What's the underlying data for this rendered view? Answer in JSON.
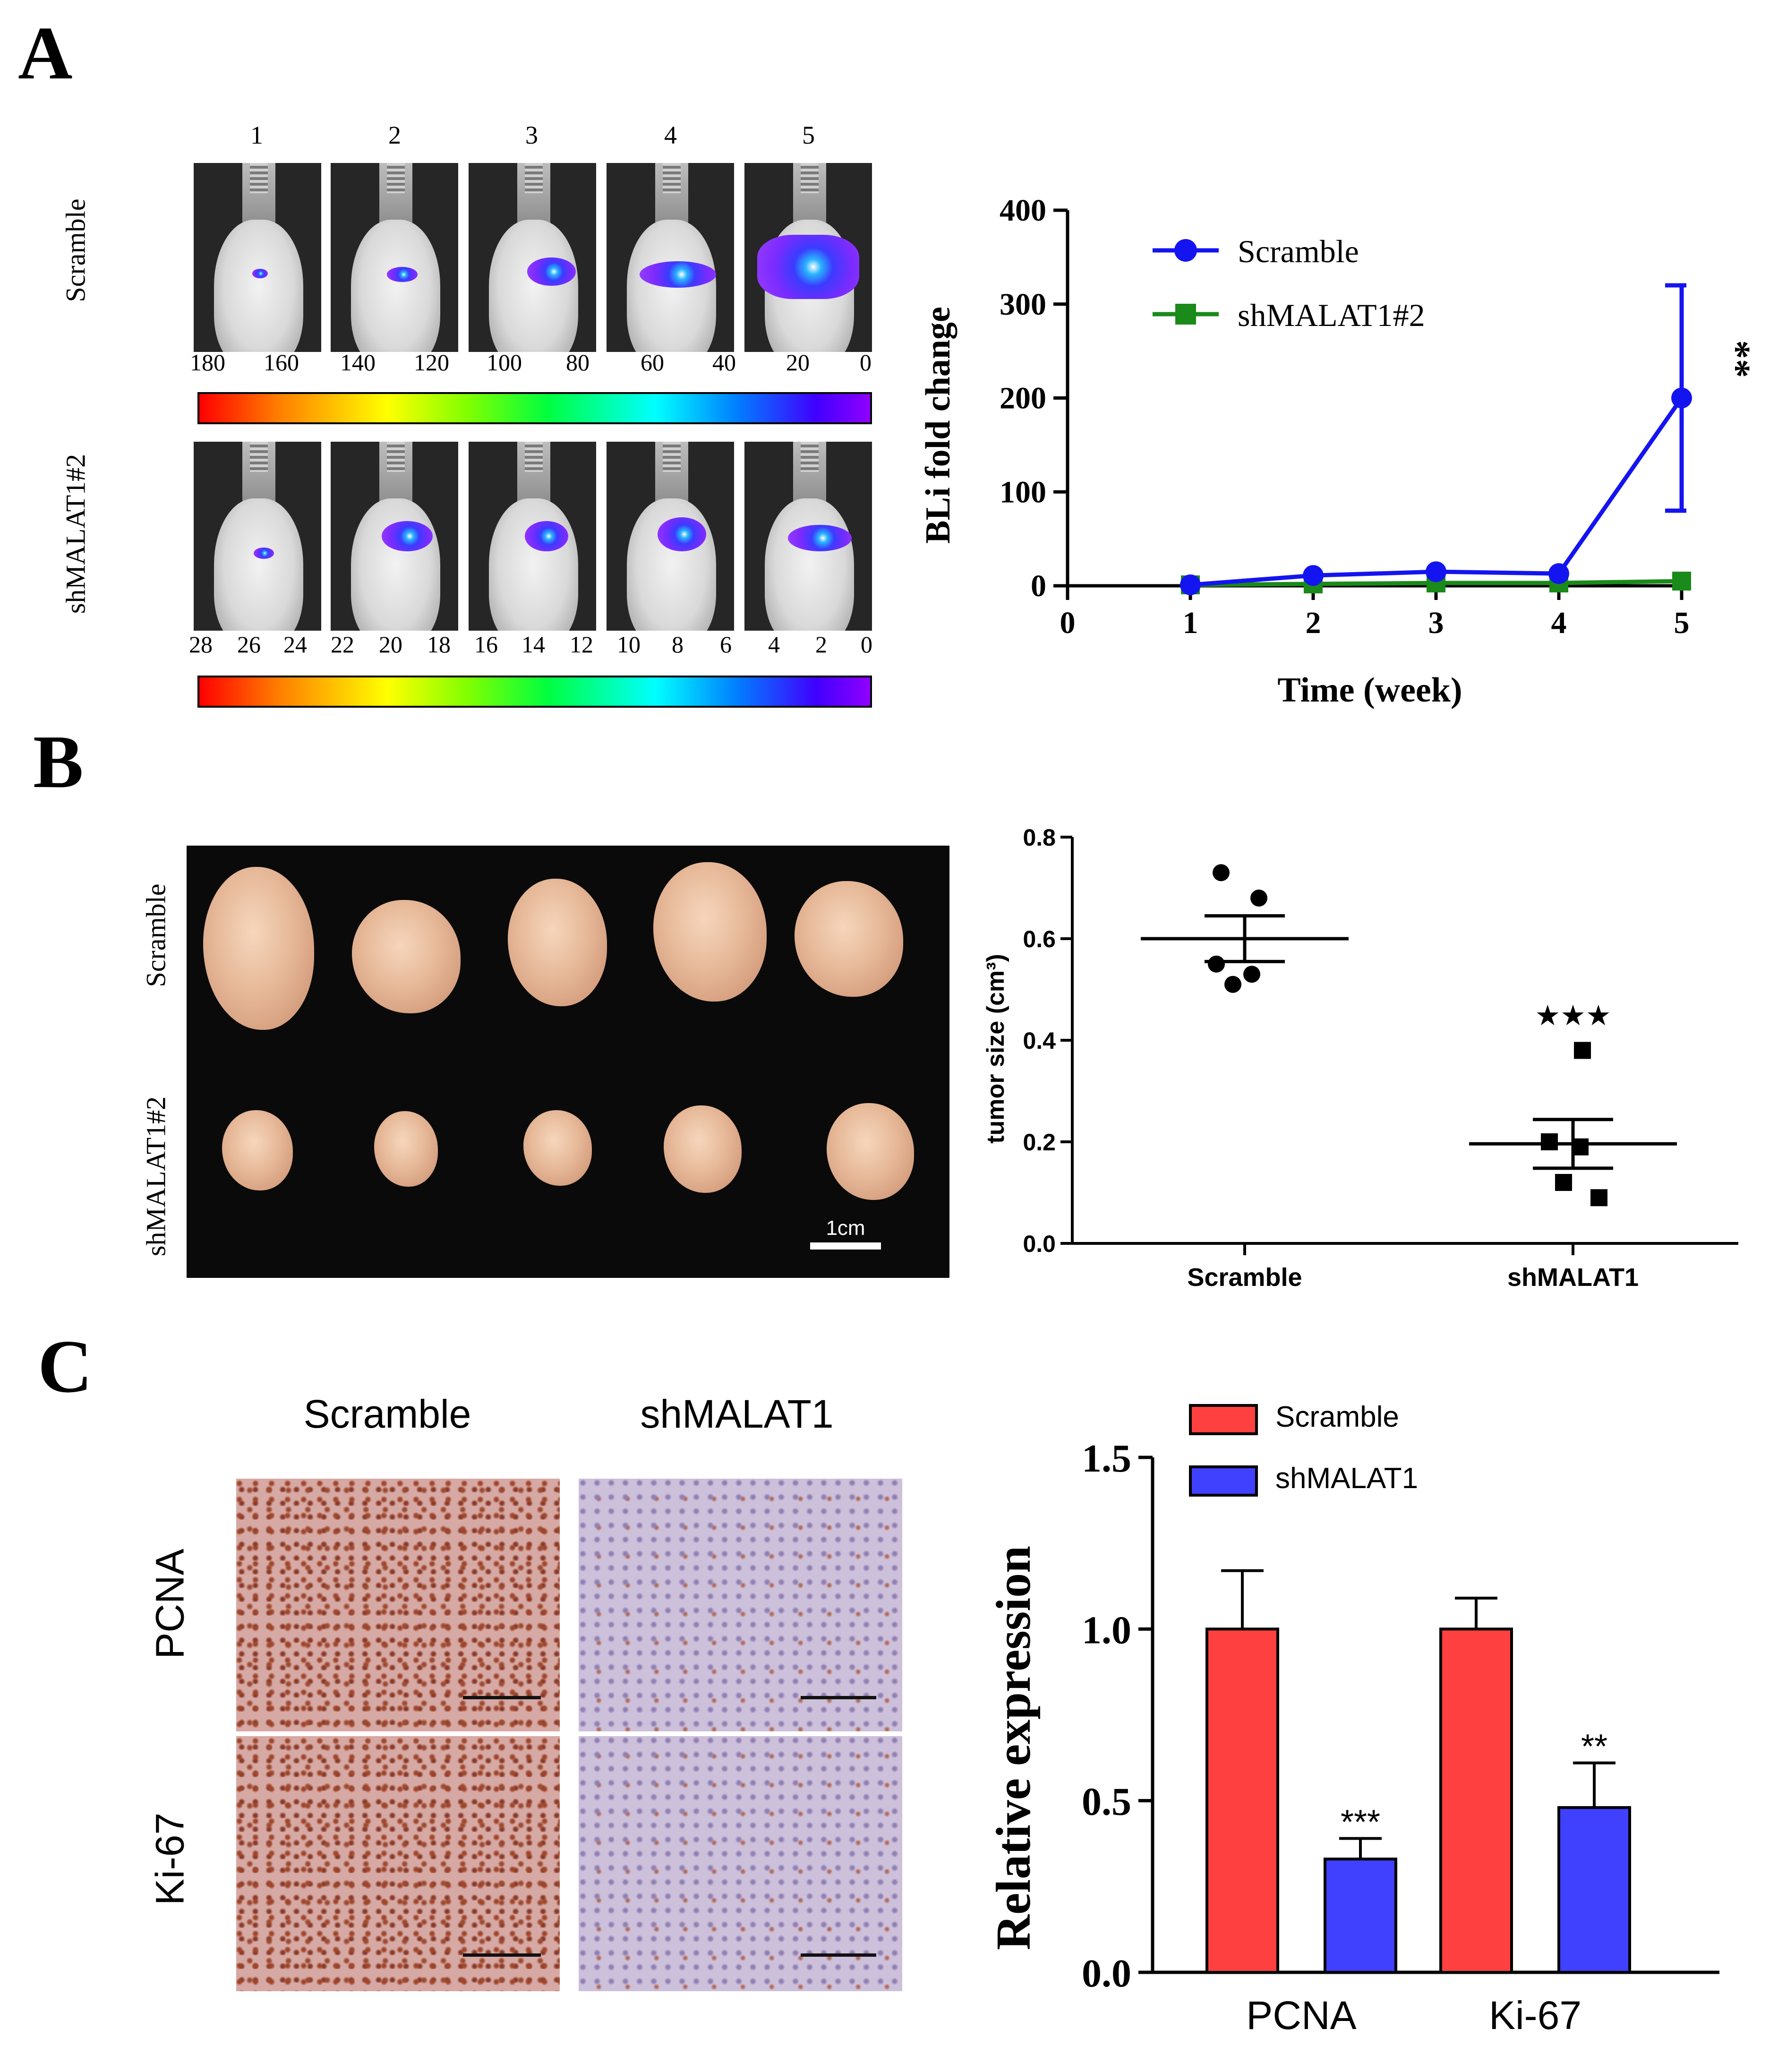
{
  "panels": {
    "a": "A",
    "b": "B",
    "c": "C"
  },
  "panel_a": {
    "mouse_columns": [
      "1",
      "2",
      "3",
      "4",
      "5"
    ],
    "row_labels": {
      "scramble": "Scramble",
      "sh": "shMALAT1#2"
    },
    "colorbar_scramble_ticks": [
      "180",
      "160",
      "140",
      "120",
      "100",
      "80",
      "60",
      "40",
      "20",
      "0"
    ],
    "colorbar_sh_ticks": [
      "28",
      "26",
      "24",
      "22",
      "20",
      "18",
      "16",
      "14",
      "12",
      "10",
      "8",
      "6",
      "4",
      "2",
      "0"
    ]
  },
  "panel_b": {
    "row_labels": {
      "scramble": "Scramble",
      "sh": "shMALAT1#2"
    },
    "scale_bar_label": "1cm"
  },
  "panel_c": {
    "column_labels": {
      "scramble": "Scramble",
      "sh": "shMALAT1"
    },
    "row_labels": {
      "pcna": "PCNA",
      "ki67": "Ki-67"
    }
  },
  "chart_data": [
    {
      "id": "bli",
      "type": "line",
      "title": "",
      "xlabel": "Time (week)",
      "ylabel": "BLi fold change",
      "xlim": [
        0,
        5
      ],
      "ylim": [
        0,
        400
      ],
      "x_ticks": [
        "0",
        "1",
        "2",
        "3",
        "4",
        "5"
      ],
      "y_ticks": [
        "0",
        "100",
        "200",
        "300",
        "400"
      ],
      "legend_position": "top",
      "series": [
        {
          "name": "Scramble",
          "color": "#1414f0",
          "marker": "circle",
          "x": [
            1,
            2,
            3,
            4,
            5
          ],
          "y": [
            1,
            11,
            15,
            13,
            200
          ],
          "err": [
            0,
            0,
            0,
            0,
            120
          ]
        },
        {
          "name": "shMALAT1#2",
          "color": "#1a8a1a",
          "marker": "square",
          "x": [
            1,
            2,
            3,
            4,
            5
          ],
          "y": [
            1,
            2,
            3,
            3,
            5
          ],
          "err": [
            0,
            0,
            0,
            0,
            0
          ]
        }
      ],
      "annotation": "**"
    },
    {
      "id": "tumor",
      "type": "scatter",
      "title": "",
      "xlabel": "",
      "ylabel": "tumor size (cm³)",
      "ylim": [
        0,
        0.8
      ],
      "categories": [
        "Scramble",
        "shMALAT1"
      ],
      "y_ticks": [
        "0.0",
        "0.2",
        "0.4",
        "0.6",
        "0.8"
      ],
      "series": [
        {
          "name": "Scramble",
          "marker": "circle",
          "values": [
            0.73,
            0.68,
            0.55,
            0.53,
            0.51
          ],
          "mean": 0.6,
          "sem": 0.045
        },
        {
          "name": "shMALAT1",
          "marker": "square",
          "values": [
            0.38,
            0.2,
            0.19,
            0.12,
            0.09
          ],
          "mean": 0.196,
          "sem": 0.048
        }
      ],
      "annotation": "★★★"
    },
    {
      "id": "relexp",
      "type": "bar",
      "title": "",
      "xlabel": "",
      "ylabel": "Relative expression",
      "ylim": [
        0,
        1.5
      ],
      "categories": [
        "PCNA",
        "Ki-67"
      ],
      "y_ticks": [
        "0.0",
        "0.5",
        "1.0",
        "1.5"
      ],
      "legend_position": "top",
      "series": [
        {
          "name": "Scramble",
          "color": "#ff4040",
          "values": [
            1.0,
            1.0
          ],
          "err": [
            0.17,
            0.09
          ]
        },
        {
          "name": "shMALAT1",
          "color": "#4040ff",
          "values": [
            0.33,
            0.48
          ],
          "err": [
            0.06,
            0.13
          ]
        }
      ],
      "annotations": [
        "***",
        "**"
      ]
    }
  ]
}
